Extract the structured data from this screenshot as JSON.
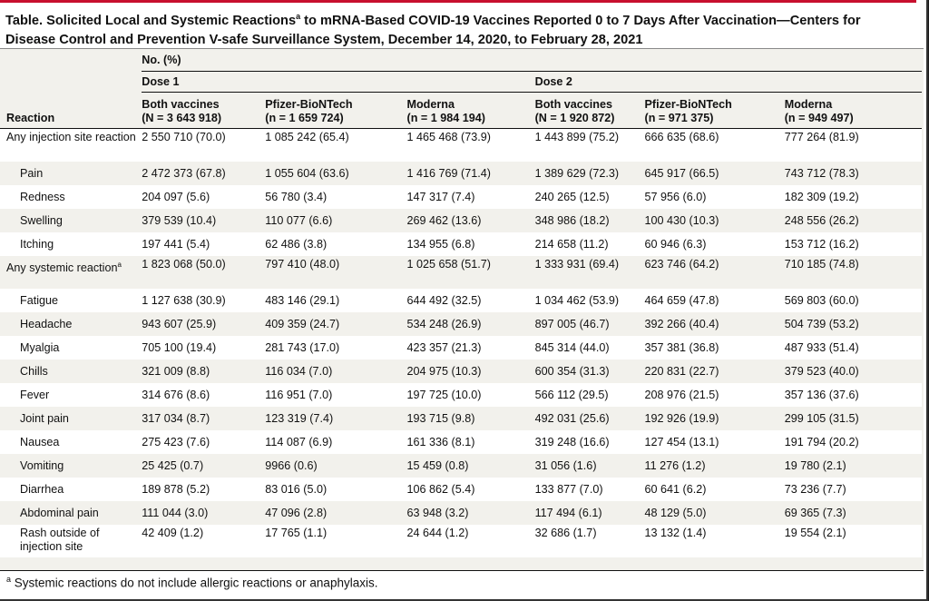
{
  "title": {
    "pre": "Table. Solicited Local and Systemic Reactions",
    "sup": "a",
    "post": " to mRNA-Based COVID-19 Vaccines Reported 0 to 7 Days After Vaccination—Centers for Disease Control and Prevention V-safe Surveillance System, December 14, 2020, to February 28, 2021"
  },
  "header": {
    "no_pct": "No. (%)",
    "dose1": "Dose 1",
    "dose2": "Dose 2",
    "reaction": "Reaction",
    "columns": [
      {
        "name": "Both vaccines",
        "n": "(N = 3 643 918)"
      },
      {
        "name": "Pfizer-BioNTech",
        "n": "(n = 1 659 724)"
      },
      {
        "name": "Moderna",
        "n": "(n = 1 984 194)"
      },
      {
        "name": "Both vaccines",
        "n": "(N = 1 920 872)"
      },
      {
        "name": "Pfizer-BioNTech",
        "n": "(n = 971 375)"
      },
      {
        "name": "Moderna",
        "n": "(n = 949 497)"
      }
    ]
  },
  "rows": [
    {
      "label": "Any injection site reaction",
      "sup": "",
      "v": [
        "2 550 710 (70.0)",
        "1 085 242 (65.4)",
        "1 465 468 (73.9)",
        "1 443 899 (75.2)",
        "666 635 (68.6)",
        "777 264 (81.9)"
      ]
    },
    {
      "label": "Pain",
      "sup": "",
      "v": [
        "2 472 373 (67.8)",
        "1 055 604 (63.6)",
        "1 416 769 (71.4)",
        "1 389 629 (72.3)",
        "645 917 (66.5)",
        "743 712 (78.3)"
      ]
    },
    {
      "label": "Redness",
      "sup": "",
      "v": [
        "204 097 (5.6)",
        "56 780 (3.4)",
        "147 317 (7.4)",
        "240 265 (12.5)",
        "57 956 (6.0)",
        "182 309 (19.2)"
      ]
    },
    {
      "label": "Swelling",
      "sup": "",
      "v": [
        "379 539 (10.4)",
        "110 077 (6.6)",
        "269 462 (13.6)",
        "348 986 (18.2)",
        "100 430 (10.3)",
        "248 556 (26.2)"
      ]
    },
    {
      "label": "Itching",
      "sup": "",
      "v": [
        "197 441 (5.4)",
        "62 486 (3.8)",
        "134 955 (6.8)",
        "214 658 (11.2)",
        "60 946 (6.3)",
        "153 712 (16.2)"
      ]
    },
    {
      "label": "Any systemic reaction",
      "sup": "a",
      "v": [
        "1 823 068 (50.0)",
        "797 410 (48.0)",
        "1 025 658 (51.7)",
        "1 333 931 (69.4)",
        "623 746 (64.2)",
        "710 185 (74.8)"
      ]
    },
    {
      "label": "Fatigue",
      "sup": "",
      "v": [
        "1 127 638 (30.9)",
        "483 146 (29.1)",
        "644 492 (32.5)",
        "1 034 462 (53.9)",
        "464 659 (47.8)",
        "569 803 (60.0)"
      ]
    },
    {
      "label": "Headache",
      "sup": "",
      "v": [
        "943 607 (25.9)",
        "409 359 (24.7)",
        "534 248 (26.9)",
        "897 005 (46.7)",
        "392 266 (40.4)",
        "504 739 (53.2)"
      ]
    },
    {
      "label": "Myalgia",
      "sup": "",
      "v": [
        "705 100 (19.4)",
        "281 743 (17.0)",
        "423 357 (21.3)",
        "845 314 (44.0)",
        "357 381 (36.8)",
        "487 933 (51.4)"
      ]
    },
    {
      "label": "Chills",
      "sup": "",
      "v": [
        "321 009 (8.8)",
        "116 034 (7.0)",
        "204 975 (10.3)",
        "600 354 (31.3)",
        "220 831 (22.7)",
        "379 523 (40.0)"
      ]
    },
    {
      "label": "Fever",
      "sup": "",
      "v": [
        "314 676 (8.6)",
        "116 951 (7.0)",
        "197 725 (10.0)",
        "566 112 (29.5)",
        "208 976 (21.5)",
        "357 136 (37.6)"
      ]
    },
    {
      "label": "Joint pain",
      "sup": "",
      "v": [
        "317 034 (8.7)",
        "123 319 (7.4)",
        "193 715 (9.8)",
        "492 031 (25.6)",
        "192 926 (19.9)",
        "299 105 (31.5)"
      ]
    },
    {
      "label": "Nausea",
      "sup": "",
      "v": [
        "275 423 (7.6)",
        "114 087 (6.9)",
        "161 336 (8.1)",
        "319 248 (16.6)",
        "127 454 (13.1)",
        "191 794 (20.2)"
      ]
    },
    {
      "label": "Vomiting",
      "sup": "",
      "v": [
        "25 425 (0.7)",
        "9966 (0.6)",
        "15 459 (0.8)",
        "31 056 (1.6)",
        "11 276 (1.2)",
        "19 780 (2.1)"
      ]
    },
    {
      "label": "Diarrhea",
      "sup": "",
      "v": [
        "189 878 (5.2)",
        "83 016 (5.0)",
        "106 862 (5.4)",
        "133 877 (7.0)",
        "60 641 (6.2)",
        "73 236 (7.7)"
      ]
    },
    {
      "label": "Abdominal pain",
      "sup": "",
      "v": [
        "111 044 (3.0)",
        "47 096 (2.8)",
        "63 948 (3.2)",
        "117 494 (6.1)",
        "48 129 (5.0)",
        "69 365 (7.3)"
      ]
    },
    {
      "label": "Rash outside of injection site",
      "sup": "",
      "v": [
        "42 409 (1.2)",
        "17 765 (1.1)",
        "24 644 (1.2)",
        "32 686 (1.7)",
        "13 132 (1.4)",
        "19 554 (2.1)"
      ]
    }
  ],
  "footnote": {
    "sup": "a",
    "text": " Systemic reactions do not include allergic reactions or anaphylaxis."
  },
  "colors": {
    "accent": "#c8102e",
    "band": "#f2f1ec"
  }
}
